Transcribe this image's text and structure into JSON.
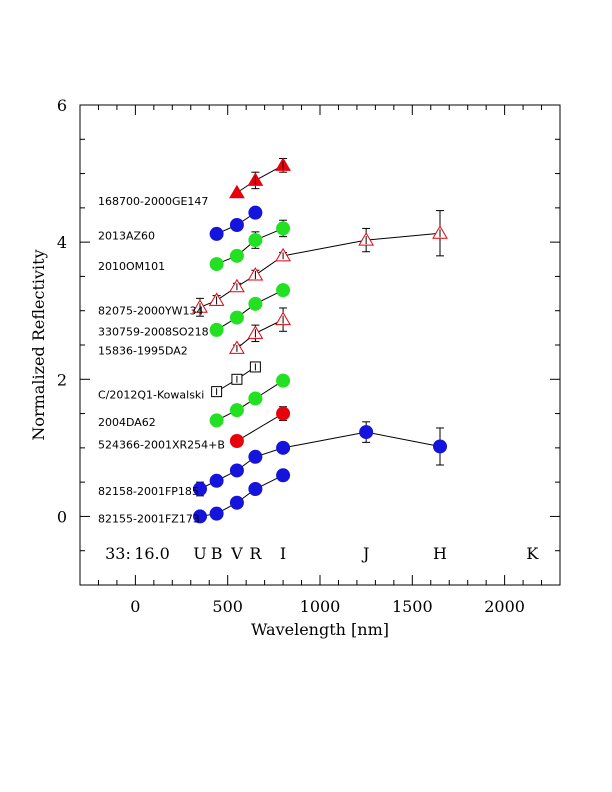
{
  "chart_data": {
    "type": "scatter",
    "xlabel": "Wavelength [nm]",
    "ylabel": "Normalized Reflectivity",
    "xlim": [
      -300,
      2300
    ],
    "ylim": [
      -1,
      6
    ],
    "x_ticks": [
      "0",
      "500",
      "1000",
      "1500",
      "2000"
    ],
    "y_ticks": [
      "0",
      "2",
      "4",
      "6"
    ],
    "footer": {
      "number": "33:",
      "value": "16.0"
    },
    "bands": [
      {
        "label": "U",
        "x": 350
      },
      {
        "label": "B",
        "x": 440
      },
      {
        "label": "V",
        "x": 550
      },
      {
        "label": "R",
        "x": 650
      },
      {
        "label": "I",
        "x": 800
      },
      {
        "label": "J",
        "x": 1250
      },
      {
        "label": "H",
        "x": 1650
      },
      {
        "label": "K",
        "x": 2150
      }
    ],
    "series": [
      {
        "name": "168700-2000GE147",
        "marker": "triangle-filled",
        "color": "#e8000b",
        "label_y": 4.6,
        "points": [
          [
            550,
            4.72,
            0
          ],
          [
            650,
            4.9,
            0.12
          ],
          [
            800,
            5.12,
            0.1
          ]
        ]
      },
      {
        "name": "2013AZ60",
        "marker": "circle",
        "color": "#1414dc",
        "label_y": 4.1,
        "points": [
          [
            440,
            4.12,
            0
          ],
          [
            550,
            4.25,
            0
          ],
          [
            650,
            4.43,
            0
          ]
        ]
      },
      {
        "name": "2010OM101",
        "marker": "circle",
        "color": "#22e022",
        "label_y": 3.65,
        "points": [
          [
            440,
            3.68,
            0.05
          ],
          [
            550,
            3.8,
            0.05
          ],
          [
            650,
            4.03,
            0.12
          ],
          [
            800,
            4.2,
            0.12
          ]
        ]
      },
      {
        "name": "82075-2000YW134",
        "marker": "triangle-open",
        "color": "#e8000b",
        "label_y": 3.0,
        "points": [
          [
            350,
            3.05,
            0.13
          ],
          [
            440,
            3.15,
            0.07
          ],
          [
            550,
            3.35,
            0.05
          ],
          [
            650,
            3.52,
            0.07
          ],
          [
            800,
            3.8,
            0.05
          ],
          [
            1250,
            4.03,
            0.17
          ],
          [
            1650,
            4.13,
            0.33
          ]
        ]
      },
      {
        "name": "330759-2008SO218",
        "marker": "circle",
        "color": "#22e022",
        "label_y": 2.7,
        "points": [
          [
            440,
            2.72,
            0.05
          ],
          [
            550,
            2.9,
            0.05
          ],
          [
            650,
            3.1,
            0.05
          ],
          [
            800,
            3.3,
            0.05
          ]
        ]
      },
      {
        "name": "15836-1995DA2",
        "marker": "triangle-open",
        "color": "#e8000b",
        "label_y": 2.42,
        "points": [
          [
            550,
            2.45,
            0.05
          ],
          [
            650,
            2.67,
            0.12
          ],
          [
            800,
            2.87,
            0.17
          ]
        ]
      },
      {
        "name": "C/2012Q1-Kowalski",
        "marker": "square-open",
        "color": "#000000",
        "label_y": 1.78,
        "points": [
          [
            440,
            1.82,
            0.05
          ],
          [
            550,
            2.0,
            0.05
          ],
          [
            650,
            2.18,
            0.05
          ]
        ]
      },
      {
        "name": "2004DA62",
        "marker": "circle",
        "color": "#22e022",
        "label_y": 1.38,
        "points": [
          [
            440,
            1.4,
            0.07
          ],
          [
            550,
            1.55,
            0.05
          ],
          [
            650,
            1.72,
            0.07
          ],
          [
            800,
            1.98,
            0.07
          ]
        ]
      },
      {
        "name": "524366-2001XR254+B",
        "marker": "circle",
        "color": "#e8000b",
        "label_y": 1.05,
        "points": [
          [
            550,
            1.1,
            0
          ],
          [
            800,
            1.5,
            0.1
          ]
        ]
      },
      {
        "name": "82158-2001FP185",
        "marker": "circle",
        "color": "#1414dc",
        "label_y": 0.37,
        "points": [
          [
            350,
            0.4,
            0.1
          ],
          [
            440,
            0.52,
            0.05
          ],
          [
            550,
            0.67,
            0.05
          ],
          [
            650,
            0.87,
            0.05
          ],
          [
            800,
            1.0,
            0.05
          ],
          [
            1250,
            1.23,
            0.15
          ],
          [
            1650,
            1.02,
            0.27
          ]
        ]
      },
      {
        "name": "82155-2001FZ173",
        "marker": "circle",
        "color": "#1414dc",
        "label_y": -0.03,
        "points": [
          [
            350,
            0.0,
            0.05
          ],
          [
            440,
            0.04,
            0.05
          ],
          [
            550,
            0.2,
            0.05
          ],
          [
            650,
            0.4,
            0.05
          ],
          [
            800,
            0.6,
            0.05
          ]
        ]
      }
    ]
  }
}
